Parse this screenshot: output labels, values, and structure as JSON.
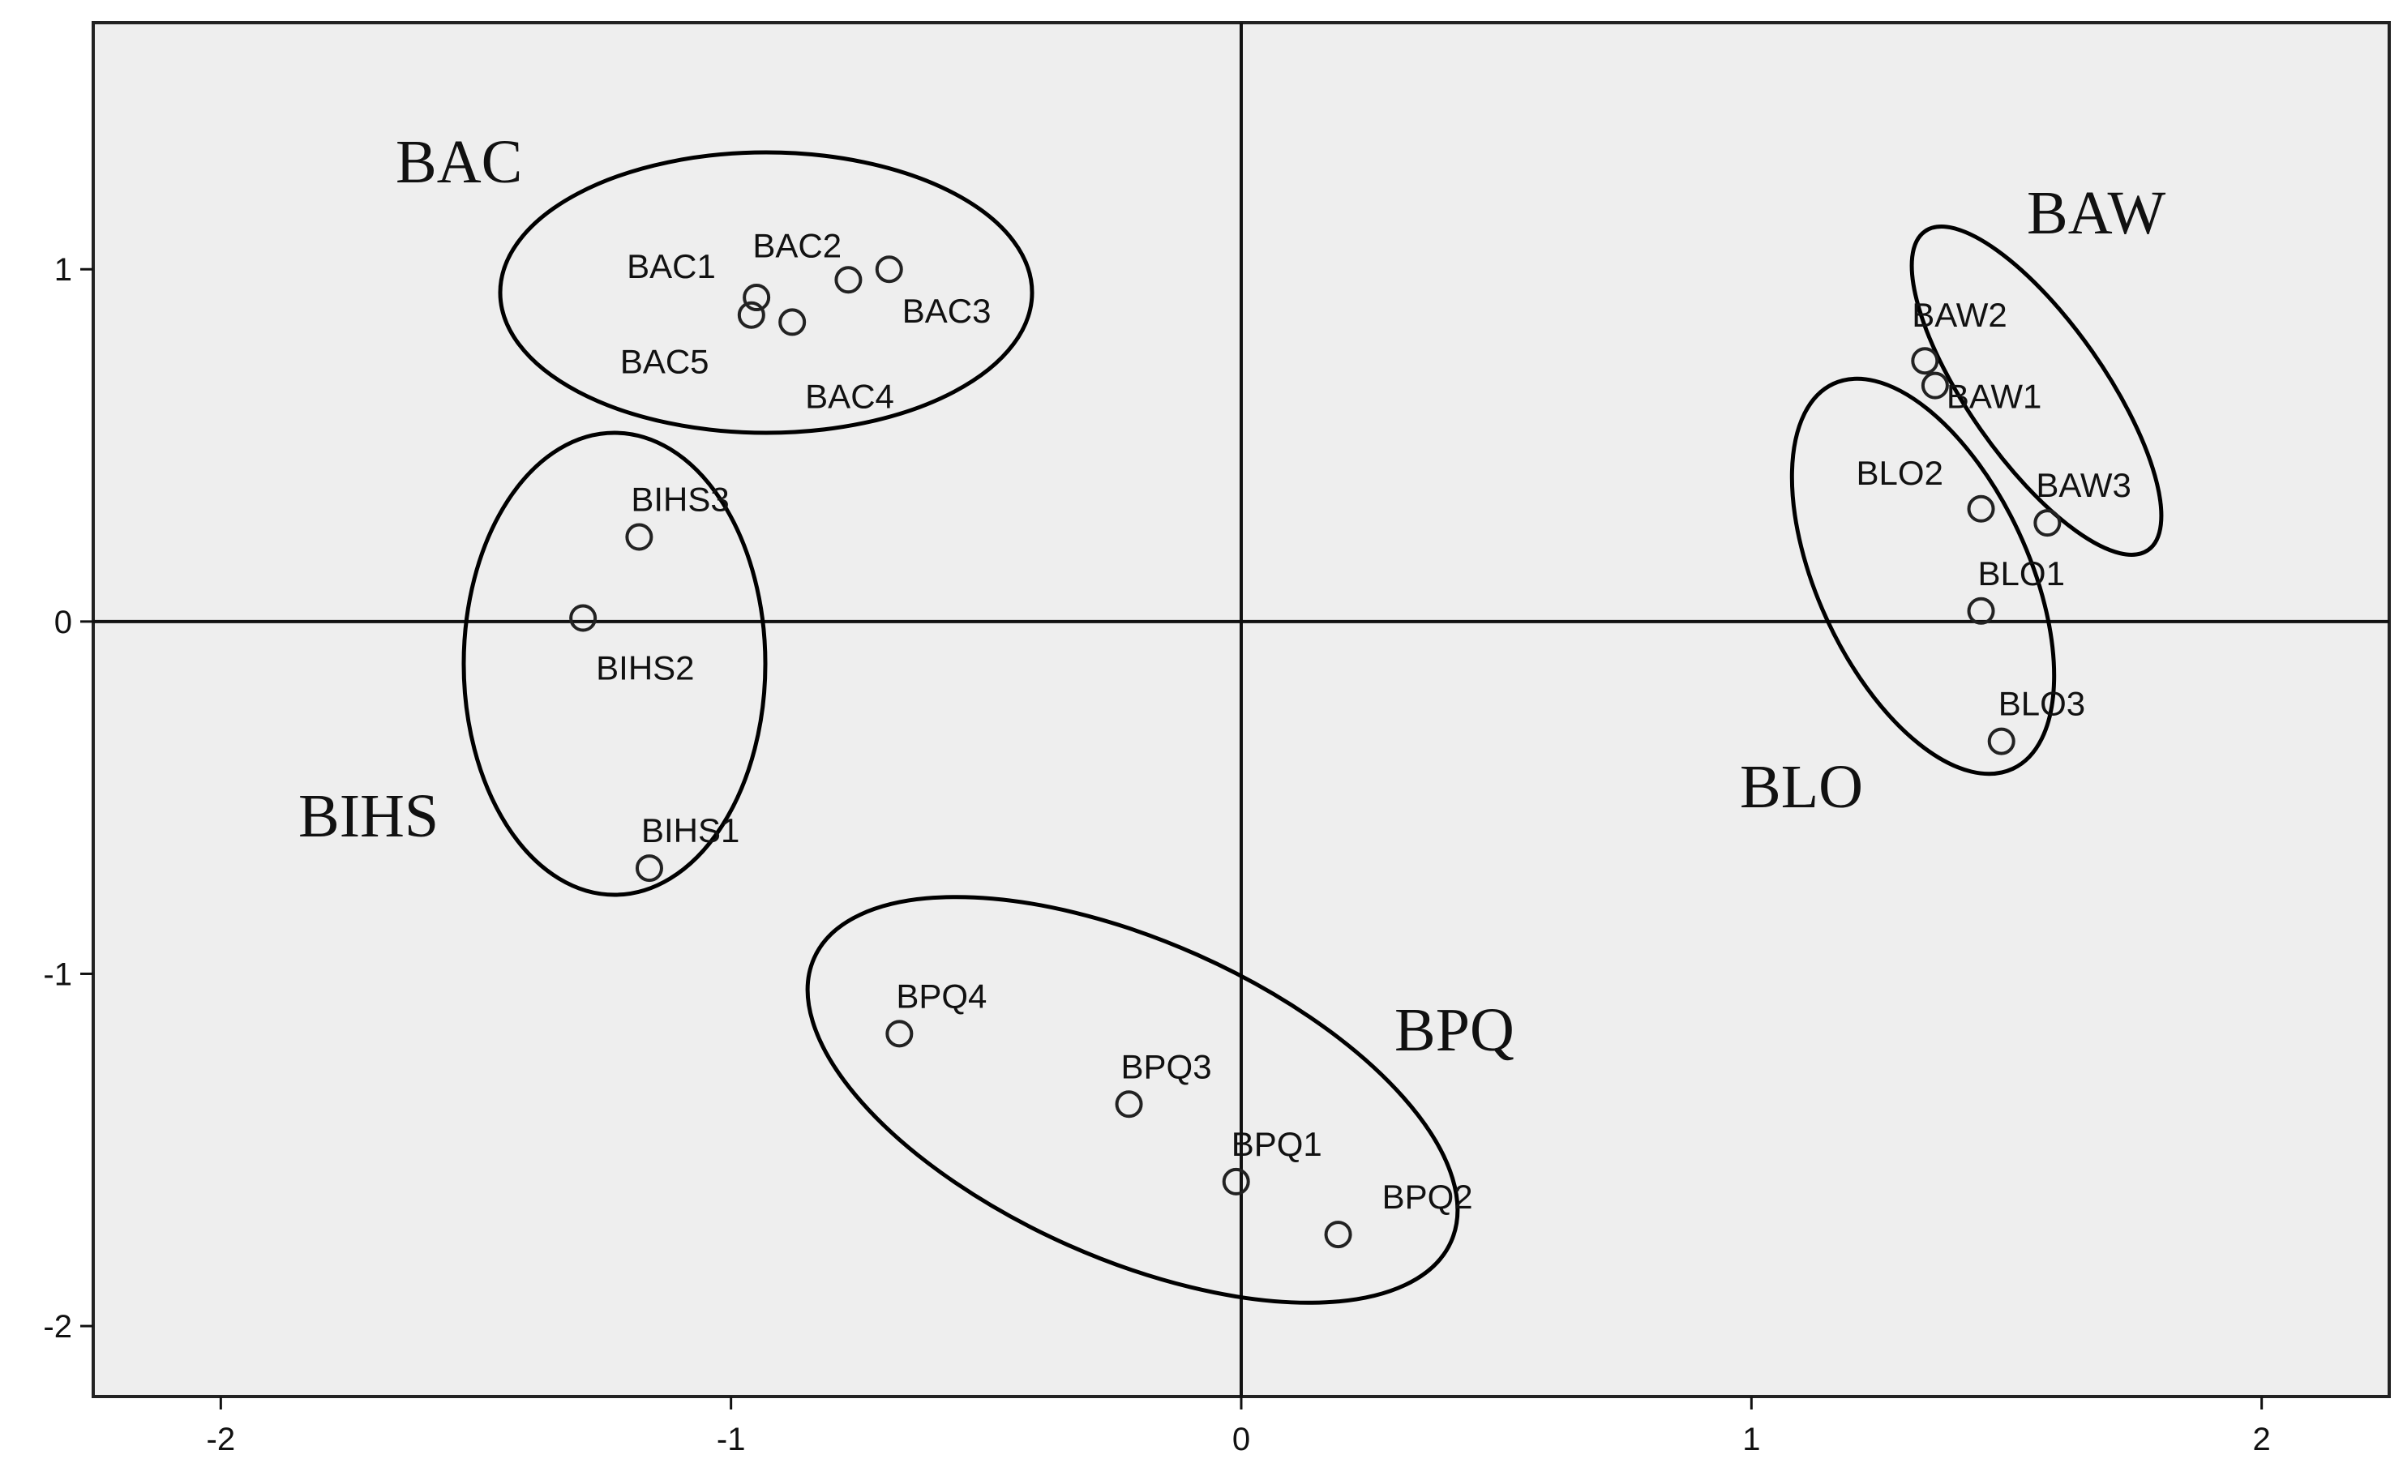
{
  "chart_data": {
    "type": "scatter",
    "title": "",
    "xlabel": "",
    "ylabel": "",
    "xlim": [
      -2.25,
      2.25
    ],
    "ylim": [
      -2.2,
      1.7
    ],
    "x_ticks": [
      -2,
      -1,
      0,
      1,
      2
    ],
    "y_ticks": [
      1,
      0,
      -1,
      -2
    ],
    "x_tick_labels": [
      "-2",
      "-1",
      "0",
      "1",
      "2"
    ],
    "y_tick_labels": [
      "1",
      "0",
      "-1",
      "-2"
    ],
    "grid": false,
    "reference_lines": {
      "x": 0,
      "y": 0
    },
    "background_color": "#eeeeee",
    "marker": "open-circle",
    "points": [
      {
        "label": "BAC1",
        "x": -0.95,
        "y": 0.92
      },
      {
        "label": "BAC2",
        "x": -0.77,
        "y": 0.97
      },
      {
        "label": "BAC3",
        "x": -0.69,
        "y": 1.0
      },
      {
        "label": "BAC4",
        "x": -0.88,
        "y": 0.85
      },
      {
        "label": "BAC5",
        "x": -0.96,
        "y": 0.87
      },
      {
        "label": "BIHS1",
        "x": -1.16,
        "y": -0.7
      },
      {
        "label": "BIHS2",
        "x": -1.29,
        "y": 0.01
      },
      {
        "label": "BIHS3",
        "x": -1.18,
        "y": 0.24
      },
      {
        "label": "BAW1",
        "x": 1.36,
        "y": 0.67
      },
      {
        "label": "BAW2",
        "x": 1.34,
        "y": 0.74
      },
      {
        "label": "BAW3",
        "x": 1.58,
        "y": 0.28
      },
      {
        "label": "BLO1",
        "x": 1.45,
        "y": 0.03
      },
      {
        "label": "BLO2",
        "x": 1.45,
        "y": 0.32
      },
      {
        "label": "BLO3",
        "x": 1.49,
        "y": -0.34
      },
      {
        "label": "BPQ1",
        "x": -0.01,
        "y": -1.59
      },
      {
        "label": "BPQ2",
        "x": 0.19,
        "y": -1.74
      },
      {
        "label": "BPQ3",
        "x": -0.22,
        "y": -1.37
      },
      {
        "label": "BPQ4",
        "x": -0.67,
        "y": -1.17
      }
    ],
    "groups": [
      {
        "name": "BAC",
        "members": [
          "BAC1",
          "BAC2",
          "BAC3",
          "BAC4",
          "BAC5"
        ]
      },
      {
        "name": "BIHS",
        "members": [
          "BIHS1",
          "BIHS2",
          "BIHS3"
        ]
      },
      {
        "name": "BAW",
        "members": [
          "BAW1",
          "BAW2",
          "BAW3"
        ]
      },
      {
        "name": "BLO",
        "members": [
          "BLO1",
          "BLO2",
          "BLO3"
        ]
      },
      {
        "name": "BPQ",
        "members": [
          "BPQ1",
          "BPQ2",
          "BPQ3",
          "BPQ4"
        ]
      }
    ]
  }
}
